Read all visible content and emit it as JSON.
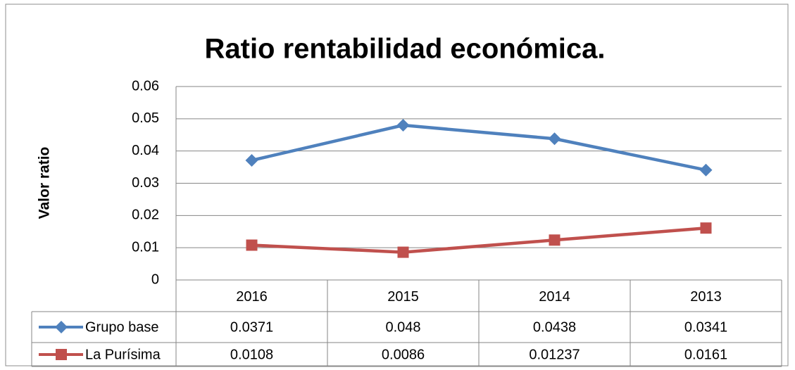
{
  "chart_data": {
    "type": "line",
    "title": "Ratio rentabilidad económica.",
    "y_label": "Valor ratio",
    "categories": [
      "2016",
      "2015",
      "2014",
      "2013"
    ],
    "series": [
      {
        "name": "Grupo base",
        "color": "#4f81bd",
        "marker": "diamond",
        "values": [
          0.0371,
          0.048,
          0.0438,
          0.0341
        ]
      },
      {
        "name": "La Purísima",
        "color": "#c0504d",
        "marker": "square",
        "values": [
          0.0108,
          0.0086,
          0.01237,
          0.0161
        ]
      }
    ],
    "ylim": [
      0,
      0.06
    ],
    "yticks": [
      0,
      0.01,
      0.02,
      0.03,
      0.04,
      0.05,
      0.06
    ],
    "grid": true,
    "data_table": true
  }
}
